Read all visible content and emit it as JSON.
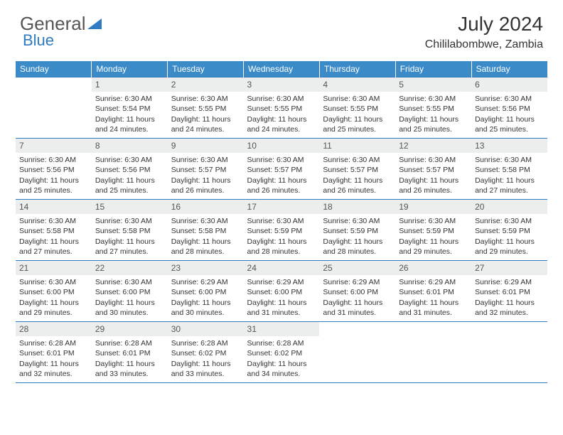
{
  "brand": {
    "part1": "General",
    "part2": "Blue"
  },
  "header": {
    "title": "July 2024",
    "location": "Chililabombwe, Zambia"
  },
  "colors": {
    "brand_blue": "#2f7ac0",
    "header_bg": "#3b8bc9",
    "daynum_bg": "#eceded",
    "text": "#333333",
    "white": "#ffffff"
  },
  "typography": {
    "title_fontsize": 28,
    "location_fontsize": 16,
    "cell_fontsize": 10.5
  },
  "weekdays": [
    "Sunday",
    "Monday",
    "Tuesday",
    "Wednesday",
    "Thursday",
    "Friday",
    "Saturday"
  ],
  "grid": {
    "rows": 5,
    "cols": 7,
    "start_weekday_index": 1,
    "days_in_month": 31
  },
  "days": [
    {
      "n": 1,
      "sunrise": "6:30 AM",
      "sunset": "5:54 PM",
      "daylight": "11 hours and 24 minutes."
    },
    {
      "n": 2,
      "sunrise": "6:30 AM",
      "sunset": "5:55 PM",
      "daylight": "11 hours and 24 minutes."
    },
    {
      "n": 3,
      "sunrise": "6:30 AM",
      "sunset": "5:55 PM",
      "daylight": "11 hours and 24 minutes."
    },
    {
      "n": 4,
      "sunrise": "6:30 AM",
      "sunset": "5:55 PM",
      "daylight": "11 hours and 25 minutes."
    },
    {
      "n": 5,
      "sunrise": "6:30 AM",
      "sunset": "5:55 PM",
      "daylight": "11 hours and 25 minutes."
    },
    {
      "n": 6,
      "sunrise": "6:30 AM",
      "sunset": "5:56 PM",
      "daylight": "11 hours and 25 minutes."
    },
    {
      "n": 7,
      "sunrise": "6:30 AM",
      "sunset": "5:56 PM",
      "daylight": "11 hours and 25 minutes."
    },
    {
      "n": 8,
      "sunrise": "6:30 AM",
      "sunset": "5:56 PM",
      "daylight": "11 hours and 25 minutes."
    },
    {
      "n": 9,
      "sunrise": "6:30 AM",
      "sunset": "5:57 PM",
      "daylight": "11 hours and 26 minutes."
    },
    {
      "n": 10,
      "sunrise": "6:30 AM",
      "sunset": "5:57 PM",
      "daylight": "11 hours and 26 minutes."
    },
    {
      "n": 11,
      "sunrise": "6:30 AM",
      "sunset": "5:57 PM",
      "daylight": "11 hours and 26 minutes."
    },
    {
      "n": 12,
      "sunrise": "6:30 AM",
      "sunset": "5:57 PM",
      "daylight": "11 hours and 26 minutes."
    },
    {
      "n": 13,
      "sunrise": "6:30 AM",
      "sunset": "5:58 PM",
      "daylight": "11 hours and 27 minutes."
    },
    {
      "n": 14,
      "sunrise": "6:30 AM",
      "sunset": "5:58 PM",
      "daylight": "11 hours and 27 minutes."
    },
    {
      "n": 15,
      "sunrise": "6:30 AM",
      "sunset": "5:58 PM",
      "daylight": "11 hours and 27 minutes."
    },
    {
      "n": 16,
      "sunrise": "6:30 AM",
      "sunset": "5:58 PM",
      "daylight": "11 hours and 28 minutes."
    },
    {
      "n": 17,
      "sunrise": "6:30 AM",
      "sunset": "5:59 PM",
      "daylight": "11 hours and 28 minutes."
    },
    {
      "n": 18,
      "sunrise": "6:30 AM",
      "sunset": "5:59 PM",
      "daylight": "11 hours and 28 minutes."
    },
    {
      "n": 19,
      "sunrise": "6:30 AM",
      "sunset": "5:59 PM",
      "daylight": "11 hours and 29 minutes."
    },
    {
      "n": 20,
      "sunrise": "6:30 AM",
      "sunset": "5:59 PM",
      "daylight": "11 hours and 29 minutes."
    },
    {
      "n": 21,
      "sunrise": "6:30 AM",
      "sunset": "6:00 PM",
      "daylight": "11 hours and 29 minutes."
    },
    {
      "n": 22,
      "sunrise": "6:30 AM",
      "sunset": "6:00 PM",
      "daylight": "11 hours and 30 minutes."
    },
    {
      "n": 23,
      "sunrise": "6:29 AM",
      "sunset": "6:00 PM",
      "daylight": "11 hours and 30 minutes."
    },
    {
      "n": 24,
      "sunrise": "6:29 AM",
      "sunset": "6:00 PM",
      "daylight": "11 hours and 31 minutes."
    },
    {
      "n": 25,
      "sunrise": "6:29 AM",
      "sunset": "6:00 PM",
      "daylight": "11 hours and 31 minutes."
    },
    {
      "n": 26,
      "sunrise": "6:29 AM",
      "sunset": "6:01 PM",
      "daylight": "11 hours and 31 minutes."
    },
    {
      "n": 27,
      "sunrise": "6:29 AM",
      "sunset": "6:01 PM",
      "daylight": "11 hours and 32 minutes."
    },
    {
      "n": 28,
      "sunrise": "6:28 AM",
      "sunset": "6:01 PM",
      "daylight": "11 hours and 32 minutes."
    },
    {
      "n": 29,
      "sunrise": "6:28 AM",
      "sunset": "6:01 PM",
      "daylight": "11 hours and 33 minutes."
    },
    {
      "n": 30,
      "sunrise": "6:28 AM",
      "sunset": "6:02 PM",
      "daylight": "11 hours and 33 minutes."
    },
    {
      "n": 31,
      "sunrise": "6:28 AM",
      "sunset": "6:02 PM",
      "daylight": "11 hours and 34 minutes."
    }
  ],
  "labels": {
    "sunrise": "Sunrise:",
    "sunset": "Sunset:",
    "daylight": "Daylight:"
  }
}
